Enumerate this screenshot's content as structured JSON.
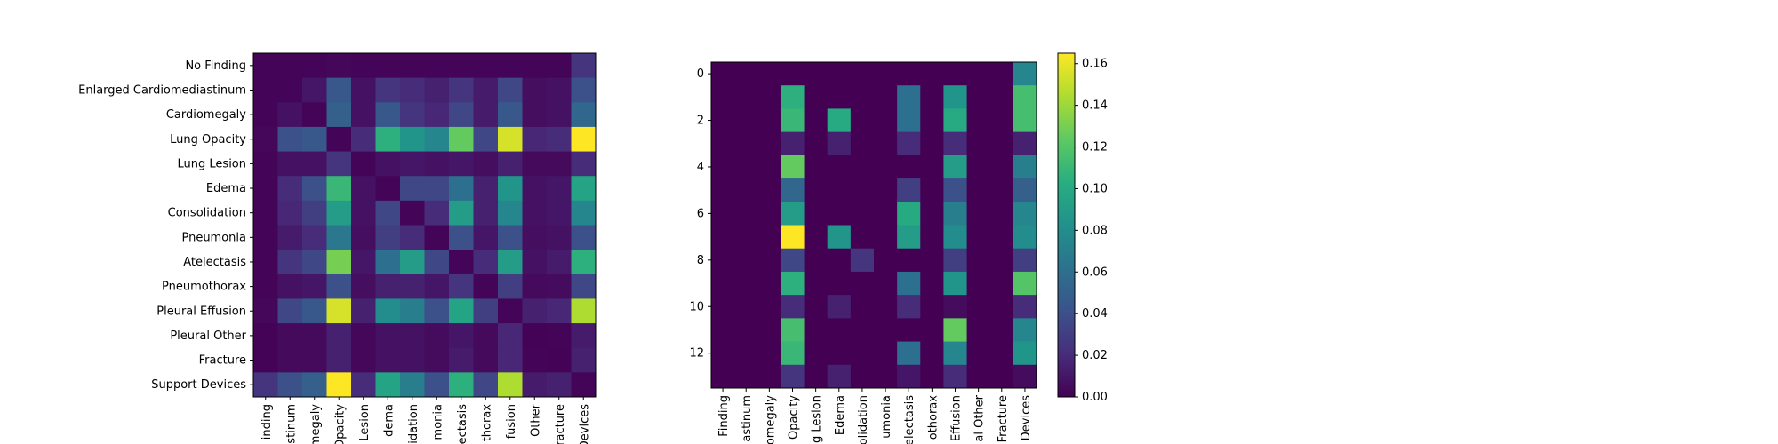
{
  "chart_data": [
    {
      "type": "heatmap",
      "title": "",
      "xlabel": "",
      "ylabel": "",
      "y_tick_labels": [
        "No Finding",
        "Enlarged Cardiomediastinum",
        "Cardiomegaly",
        "Lung Opacity",
        "Lung Lesion",
        "Edema",
        "Consolidation",
        "Pneumonia",
        "Atelectasis",
        "Pneumothorax",
        "Pleural Effusion",
        "Pleural Other",
        "Fracture",
        "Support Devices"
      ],
      "x_tick_labels": [
        "inding",
        "stinum",
        "megaly",
        "Opacity",
        "Lesion",
        "dema",
        "olidation",
        "monia",
        "lectasis",
        "thorax",
        "fusion",
        "Other",
        "racture",
        "Devices"
      ],
      "values": [
        [
          0.002,
          0.002,
          0.002,
          0.003,
          0.002,
          0.002,
          0.002,
          0.002,
          0.002,
          0.002,
          0.002,
          0.002,
          0.002,
          0.025
        ],
        [
          0.002,
          0.002,
          0.01,
          0.045,
          0.008,
          0.025,
          0.02,
          0.015,
          0.025,
          0.012,
          0.035,
          0.006,
          0.008,
          0.04
        ],
        [
          0.002,
          0.008,
          0.002,
          0.05,
          0.008,
          0.045,
          0.025,
          0.018,
          0.035,
          0.012,
          0.045,
          0.006,
          0.008,
          0.055
        ],
        [
          0.003,
          0.04,
          0.045,
          0.002,
          0.02,
          0.105,
          0.085,
          0.075,
          0.125,
          0.035,
          0.155,
          0.018,
          0.02,
          0.165
        ],
        [
          0.002,
          0.008,
          0.008,
          0.025,
          0.002,
          0.008,
          0.01,
          0.008,
          0.01,
          0.006,
          0.015,
          0.004,
          0.004,
          0.02
        ],
        [
          0.002,
          0.02,
          0.04,
          0.11,
          0.008,
          0.002,
          0.035,
          0.035,
          0.06,
          0.015,
          0.085,
          0.008,
          0.01,
          0.095
        ],
        [
          0.002,
          0.018,
          0.03,
          0.09,
          0.008,
          0.035,
          0.002,
          0.02,
          0.09,
          0.015,
          0.075,
          0.008,
          0.01,
          0.075
        ],
        [
          0.002,
          0.012,
          0.02,
          0.065,
          0.006,
          0.03,
          0.02,
          0.002,
          0.04,
          0.01,
          0.04,
          0.006,
          0.008,
          0.04
        ],
        [
          0.002,
          0.025,
          0.035,
          0.13,
          0.01,
          0.06,
          0.09,
          0.035,
          0.002,
          0.02,
          0.09,
          0.008,
          0.012,
          0.105
        ],
        [
          0.002,
          0.008,
          0.01,
          0.04,
          0.006,
          0.015,
          0.015,
          0.01,
          0.025,
          0.002,
          0.03,
          0.004,
          0.005,
          0.035
        ],
        [
          0.003,
          0.035,
          0.045,
          0.155,
          0.015,
          0.08,
          0.07,
          0.04,
          0.095,
          0.03,
          0.002,
          0.015,
          0.018,
          0.145
        ],
        [
          0.001,
          0.004,
          0.004,
          0.015,
          0.003,
          0.008,
          0.008,
          0.005,
          0.01,
          0.004,
          0.018,
          0.001,
          0.002,
          0.012
        ],
        [
          0.001,
          0.004,
          0.004,
          0.015,
          0.003,
          0.008,
          0.008,
          0.005,
          0.012,
          0.004,
          0.018,
          0.002,
          0.001,
          0.015
        ],
        [
          0.025,
          0.04,
          0.05,
          0.165,
          0.02,
          0.095,
          0.07,
          0.04,
          0.105,
          0.035,
          0.145,
          0.012,
          0.015,
          0.002
        ]
      ]
    },
    {
      "type": "heatmap",
      "title": "",
      "xlabel": "",
      "ylabel": "",
      "y_ticks": [
        "0",
        "2",
        "4",
        "6",
        "8",
        "10",
        "12"
      ],
      "x_tick_labels": [
        "Finding",
        "astinum",
        "omegaly",
        "Opacity",
        "g Lesion",
        "Edema",
        "olidation",
        "umonia",
        "electasis",
        "othorax",
        "Effusion",
        "al Other",
        "Fracture",
        "Devices"
      ],
      "values": [
        [
          0,
          0,
          0,
          0,
          0,
          0,
          0,
          0,
          0,
          0,
          0,
          0,
          0,
          0.075
        ],
        [
          0,
          0,
          0,
          0.105,
          0,
          0,
          0,
          0,
          0.06,
          0,
          0.085,
          0,
          0,
          0.115
        ],
        [
          0,
          0,
          0,
          0.11,
          0,
          0.1,
          0,
          0,
          0.06,
          0,
          0.1,
          0,
          0,
          0.115
        ],
        [
          0,
          0,
          0,
          0.015,
          0,
          0.015,
          0,
          0,
          0.02,
          0,
          0.02,
          0,
          0,
          0.015
        ],
        [
          0,
          0,
          0,
          0.125,
          0,
          0,
          0,
          0,
          0,
          0,
          0.09,
          0,
          0,
          0.07
        ],
        [
          0,
          0,
          0,
          0.055,
          0,
          0,
          0,
          0,
          0.03,
          0,
          0.04,
          0,
          0,
          0.05
        ],
        [
          0,
          0,
          0,
          0.09,
          0,
          0,
          0,
          0,
          0.1,
          0,
          0.07,
          0,
          0,
          0.075
        ],
        [
          0,
          0,
          0,
          0.165,
          0,
          0.085,
          0,
          0,
          0.09,
          0,
          0.08,
          0,
          0,
          0.08
        ],
        [
          0,
          0,
          0,
          0.035,
          0,
          0,
          0.025,
          0,
          0,
          0,
          0.03,
          0,
          0,
          0.03
        ],
        [
          0,
          0,
          0,
          0.105,
          0,
          0,
          0,
          0,
          0.06,
          0,
          0.085,
          0,
          0,
          0.12
        ],
        [
          0,
          0,
          0,
          0.02,
          0,
          0.015,
          0,
          0,
          0.02,
          0,
          0.005,
          0,
          0,
          0.02
        ],
        [
          0,
          0,
          0,
          0.115,
          0,
          0,
          0,
          0,
          0,
          0,
          0.125,
          0,
          0,
          0.075
        ],
        [
          0,
          0,
          0,
          0.11,
          0,
          0,
          0,
          0,
          0.06,
          0,
          0.075,
          0,
          0,
          0.085
        ],
        [
          0,
          0,
          0,
          0.025,
          0,
          0.015,
          0,
          0,
          0.01,
          0,
          0.02,
          0,
          0,
          0.005
        ]
      ],
      "colorbar": {
        "min": 0.0,
        "max": 0.165,
        "ticks": [
          "0.00",
          "0.02",
          "0.04",
          "0.06",
          "0.08",
          "0.10",
          "0.12",
          "0.14",
          "0.16"
        ],
        "colormap": "viridis"
      }
    }
  ]
}
